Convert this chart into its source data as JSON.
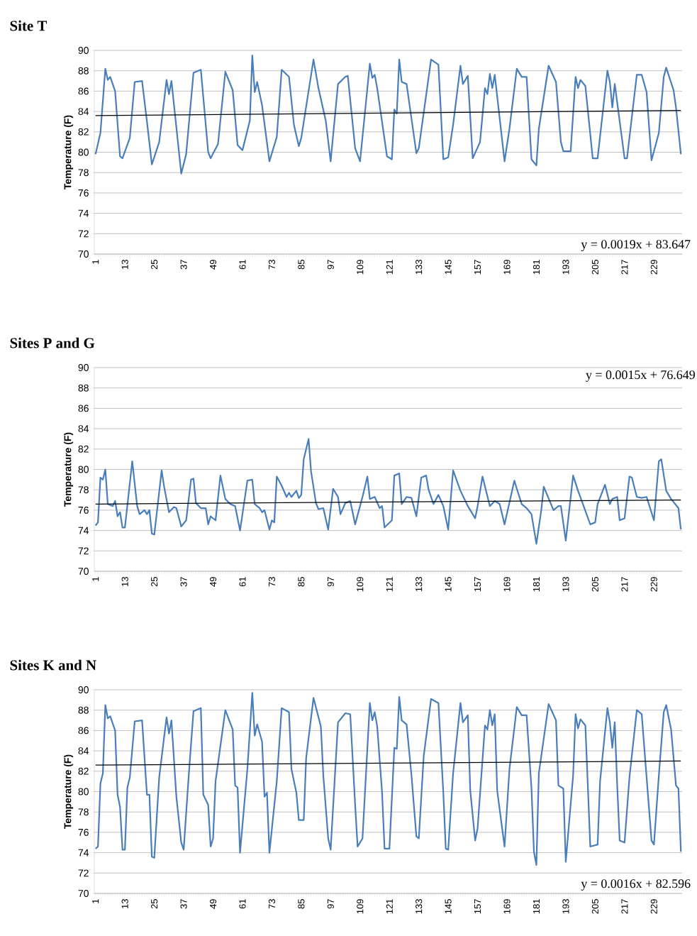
{
  "chart_data": [
    {
      "type": "line",
      "title": "Site T",
      "ylabel": "Temperature (F)",
      "xlim": [
        0.5,
        240.5
      ],
      "ylim": [
        70,
        90
      ],
      "xticks": [
        1,
        13,
        25,
        37,
        49,
        61,
        73,
        85,
        97,
        109,
        121,
        133,
        145,
        157,
        169,
        181,
        193,
        205,
        217,
        229
      ],
      "yticks": [
        70,
        72,
        74,
        76,
        78,
        80,
        82,
        84,
        86,
        88,
        90
      ],
      "grid": "y",
      "marker": "none",
      "line_style": "solid",
      "annotations": [
        "y = 0.0019x + 83.647"
      ],
      "series": [
        {
          "color": "#4a7ebb",
          "x": [
            1,
            3,
            5,
            6,
            7,
            9,
            11,
            12,
            15,
            17,
            20,
            22,
            24,
            27,
            30,
            31,
            32,
            36,
            38,
            41,
            44,
            47,
            48,
            51,
            54,
            57,
            59,
            61,
            64,
            65,
            66,
            67,
            69,
            72,
            75,
            77,
            80,
            82,
            84,
            85,
            90,
            92,
            95,
            97,
            100,
            103,
            104,
            107,
            109,
            113,
            114,
            115,
            116,
            120,
            122,
            123,
            124,
            125,
            126,
            128,
            132,
            133,
            138,
            141,
            143,
            145,
            147,
            150,
            151,
            153,
            155,
            158,
            160,
            161,
            162,
            163,
            164,
            168,
            170,
            173,
            175,
            177,
            179,
            181,
            182,
            186,
            189,
            191,
            192,
            195,
            197,
            198,
            199,
            201,
            204,
            206,
            210,
            211,
            212,
            213,
            217,
            218,
            222,
            224,
            226,
            228,
            231,
            233,
            234,
            237,
            238,
            240
          ],
          "values": [
            79.8,
            81.9,
            88.2,
            87.1,
            87.4,
            86,
            79.6,
            79.4,
            81.4,
            86.9,
            87,
            83,
            78.8,
            81,
            87.1,
            85.7,
            87,
            77.9,
            79.8,
            87.8,
            88.1,
            80,
            79.4,
            80.8,
            87.9,
            86.1,
            80.7,
            80.2,
            83.1,
            89.5,
            85.9,
            86.9,
            84.6,
            79.1,
            81.5,
            88.1,
            87.4,
            82.7,
            80.6,
            81.4,
            89.1,
            86.3,
            83.1,
            79.1,
            86.7,
            87.4,
            87.5,
            80.4,
            79.1,
            88.7,
            87.3,
            87.6,
            86.3,
            79.6,
            79.3,
            84.2,
            83.8,
            89.1,
            86.9,
            86.7,
            79.9,
            80.4,
            89.1,
            88.6,
            79.3,
            79.5,
            82.7,
            88.5,
            86.7,
            87.5,
            79.4,
            81,
            86.3,
            85.7,
            87.7,
            86.3,
            87.6,
            79.1,
            82.3,
            88.2,
            87.4,
            87.4,
            79.3,
            78.7,
            82.3,
            88.5,
            86.9,
            81,
            80.1,
            80.1,
            87.4,
            86.3,
            87.1,
            86.5,
            79.4,
            79.4,
            88,
            86.9,
            84.4,
            86.7,
            79.4,
            79.4,
            87.6,
            87.6,
            85.9,
            79.2,
            81.9,
            87.4,
            88.3,
            86.1,
            84.4,
            79.8
          ]
        },
        {
          "type": "line",
          "color": "#000000",
          "x": [
            1,
            240
          ],
          "values": [
            83.6,
            84.1
          ]
        }
      ]
    },
    {
      "type": "line",
      "title": "Sites P and G",
      "ylabel": "Temperature (F)",
      "xlim": [
        0.5,
        240.5
      ],
      "ylim": [
        70,
        90
      ],
      "xticks": [
        1,
        13,
        25,
        37,
        49,
        61,
        73,
        85,
        97,
        109,
        121,
        133,
        145,
        157,
        169,
        181,
        193,
        205,
        217,
        229
      ],
      "yticks": [
        70,
        72,
        74,
        76,
        78,
        80,
        82,
        84,
        86,
        88,
        90
      ],
      "grid": "y",
      "marker": "none",
      "line_style": "solid",
      "annotations": [
        "y = 0.0015x + 76.649"
      ],
      "series": [
        {
          "color": "#4a7ebb",
          "x": [
            1,
            2,
            3,
            4,
            5,
            6,
            8,
            9,
            10,
            11,
            12,
            13,
            16,
            18,
            19,
            21,
            22,
            23,
            24,
            25,
            28,
            29,
            31,
            33,
            34,
            36,
            38,
            40,
            41,
            42,
            44,
            46,
            47,
            48,
            50,
            52,
            54,
            56,
            58,
            60,
            63,
            65,
            66,
            68,
            69,
            70,
            72,
            73,
            74,
            75,
            77,
            79,
            80,
            81,
            83,
            84,
            85,
            86,
            88,
            89,
            91,
            92,
            94,
            96,
            98,
            100,
            101,
            103,
            105,
            107,
            110,
            112,
            113,
            115,
            117,
            118,
            119,
            122,
            123,
            125,
            126,
            128,
            130,
            132,
            134,
            136,
            137,
            139,
            141,
            143,
            145,
            147,
            150,
            153,
            156,
            157,
            159,
            162,
            164,
            166,
            168,
            172,
            173,
            175,
            177,
            179,
            181,
            183,
            184,
            188,
            190,
            191,
            193,
            196,
            198,
            200,
            203,
            205,
            206,
            209,
            211,
            212,
            214,
            215,
            217,
            219,
            220,
            222,
            224,
            226,
            229,
            231,
            232,
            234,
            236,
            239,
            240
          ],
          "values": [
            74.5,
            74.8,
            79.2,
            79,
            80,
            76.6,
            76.4,
            76.9,
            75.4,
            75.8,
            74.3,
            74.3,
            80.8,
            76.4,
            75.6,
            76,
            75.6,
            76,
            73.7,
            73.6,
            79.9,
            78.3,
            75.8,
            76.3,
            76.2,
            74.4,
            75,
            79,
            79.1,
            76.7,
            76.2,
            76.2,
            74.6,
            75.4,
            75,
            79.4,
            77.1,
            76.6,
            76.4,
            74,
            78.9,
            79,
            76.6,
            76.2,
            75.8,
            76,
            74.1,
            75,
            74.8,
            79.3,
            78.4,
            77.3,
            77.7,
            77.3,
            77.9,
            77.2,
            77.5,
            81,
            83,
            79.8,
            76.7,
            76.1,
            76.2,
            74.1,
            78.1,
            77.3,
            75.6,
            76.7,
            76.9,
            74.6,
            77.3,
            79.3,
            77.1,
            77.3,
            76.2,
            76.4,
            74.3,
            75,
            79.4,
            79.6,
            76.6,
            77.3,
            77.2,
            75.4,
            79.2,
            79.4,
            78,
            76.6,
            77.5,
            76.4,
            74.1,
            79.9,
            77.9,
            76.4,
            75.2,
            76.4,
            79.3,
            76.4,
            76.9,
            76.6,
            74.6,
            78.9,
            78.1,
            76.6,
            76.2,
            75.6,
            72.7,
            76,
            78.3,
            76,
            76.4,
            76.4,
            73,
            79.4,
            77.9,
            76.6,
            74.6,
            74.8,
            76.6,
            78.5,
            76.6,
            77.1,
            77.3,
            75,
            75.2,
            79.3,
            79.2,
            77.3,
            77.2,
            77.3,
            75,
            80.8,
            81,
            77.9,
            77.1,
            76.2,
            74.1
          ]
        },
        {
          "type": "line",
          "color": "#000000",
          "x": [
            1,
            240
          ],
          "values": [
            76.6,
            77.0
          ]
        }
      ]
    },
    {
      "type": "line",
      "title": "Sites K and N",
      "ylabel": "Temperature (F)",
      "xlim": [
        0.5,
        240.5
      ],
      "ylim": [
        70,
        90
      ],
      "xticks": [
        1,
        13,
        25,
        37,
        49,
        61,
        73,
        85,
        97,
        109,
        121,
        133,
        145,
        157,
        169,
        181,
        193,
        205,
        217,
        229
      ],
      "yticks": [
        70,
        72,
        74,
        76,
        78,
        80,
        82,
        84,
        86,
        88,
        90
      ],
      "grid": "y",
      "marker": "none",
      "line_style": "solid",
      "annotations": [
        "y = 0.0016x + 82.596"
      ],
      "series": [
        {
          "color": "#4a7ebb",
          "x": [
            1,
            2,
            3,
            4,
            5,
            6,
            7,
            9,
            10,
            11,
            12,
            13,
            14,
            15,
            17,
            20,
            22,
            23,
            24,
            25,
            27,
            30,
            31,
            32,
            34,
            36,
            37,
            39,
            41,
            44,
            45,
            47,
            48,
            49,
            50,
            54,
            57,
            58,
            59,
            60,
            63,
            65,
            66,
            67,
            69,
            70,
            71,
            72,
            75,
            77,
            80,
            81,
            83,
            84,
            86,
            87,
            90,
            93,
            94,
            96,
            97,
            100,
            103,
            105,
            107,
            108,
            110,
            113,
            114,
            115,
            116,
            118,
            119,
            121,
            123,
            124,
            125,
            126,
            128,
            130,
            132,
            133,
            135,
            138,
            141,
            143,
            144,
            145,
            147,
            150,
            151,
            153,
            154,
            156,
            157,
            160,
            161,
            162,
            163,
            164,
            165,
            168,
            170,
            173,
            175,
            177,
            179,
            180,
            181,
            182,
            186,
            189,
            190,
            192,
            193,
            196,
            197,
            198,
            199,
            201,
            202,
            203,
            206,
            207,
            210,
            211,
            212,
            213,
            214,
            215,
            217,
            219,
            222,
            224,
            226,
            228,
            229,
            231,
            233,
            234,
            236,
            238,
            239,
            240
          ],
          "values": [
            74.4,
            74.6,
            80.8,
            81.8,
            88.5,
            87.2,
            87.4,
            86,
            79.7,
            78.5,
            74.3,
            74.3,
            80.4,
            81.4,
            86.9,
            87,
            79.7,
            79.7,
            73.6,
            73.5,
            81.4,
            87.3,
            85.7,
            87,
            79.5,
            75,
            74.3,
            81.4,
            87.9,
            88.2,
            79.7,
            78.7,
            74.6,
            75.4,
            81,
            88,
            86.1,
            80.6,
            80.4,
            74,
            82.2,
            89.7,
            85.5,
            86.6,
            84.9,
            79.5,
            79.9,
            74,
            81,
            88.2,
            87.8,
            82.2,
            79.9,
            77.2,
            77.2,
            83.3,
            89.2,
            86.4,
            81.6,
            75.4,
            74.3,
            86.8,
            87.7,
            87.6,
            78.7,
            74.6,
            75.4,
            88.7,
            87,
            87.8,
            86.4,
            79.9,
            74.4,
            74.4,
            84.3,
            84.2,
            89.3,
            87,
            86.6,
            81.6,
            75.6,
            75.4,
            83.5,
            89.1,
            88.7,
            79.9,
            74.4,
            74.3,
            81.8,
            88.7,
            86.8,
            87.5,
            80.1,
            75.2,
            76.4,
            86.5,
            86.1,
            88,
            86.5,
            87.6,
            80.1,
            74.6,
            82.2,
            88.3,
            87.5,
            87.5,
            80.3,
            74.1,
            72.8,
            81.8,
            88.6,
            87,
            80.6,
            80.3,
            73.1,
            81.6,
            87.6,
            86.2,
            87.1,
            86.5,
            80.6,
            74.6,
            74.8,
            81,
            88.2,
            86.8,
            84.3,
            86.8,
            80.6,
            75.2,
            75,
            81.4,
            88,
            87.6,
            81.4,
            75.2,
            74.8,
            81.6,
            87.8,
            88.5,
            86.1,
            80.6,
            80.3,
            74.1
          ]
        },
        {
          "type": "line",
          "color": "#000000",
          "x": [
            1,
            240
          ],
          "values": [
            82.6,
            83.0
          ]
        }
      ]
    }
  ]
}
